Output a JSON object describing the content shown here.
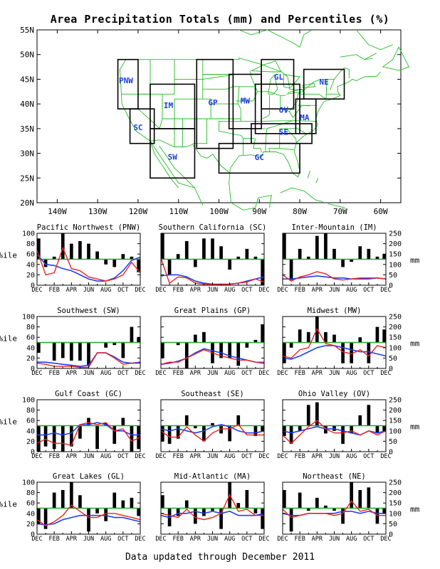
{
  "title": "Area Precipitation Totals (mm) and Percentiles (%)",
  "footer": "Data updated through December 2011",
  "colors": {
    "map_lines": "#22bb22",
    "region_box": "#000000",
    "region_label": "#1a3fe0",
    "precip_line": "#ee2222",
    "normal_line": "#2040ee",
    "median_line": "#22aa22",
    "bar": "#000000"
  },
  "map": {
    "lat_labels": [
      "55N",
      "50N",
      "45N",
      "40N",
      "35N",
      "30N",
      "25N",
      "20N"
    ],
    "lon_labels": [
      "140W",
      "130W",
      "120W",
      "110W",
      "100W",
      "90W",
      "80W",
      "70W",
      "60W"
    ],
    "regions": [
      "PNW",
      "SC",
      "IM",
      "SW",
      "GP",
      "MW",
      "GL",
      "OV",
      "SE",
      "GC",
      "MA",
      "NE"
    ]
  },
  "axis": {
    "pct_label": "%ile",
    "mm_label": "mm",
    "pct_ticks": [
      "0",
      "20",
      "40",
      "60",
      "80",
      "100"
    ],
    "mm_ticks": [
      "0",
      "50",
      "100",
      "150",
      "200",
      "250"
    ],
    "month_ticks": [
      "DEC",
      "FEB",
      "APR",
      "JUN",
      "AUG",
      "OCT",
      "DEC"
    ]
  },
  "chart_data": [
    {
      "type": "bar",
      "title": "Pacific Northwest (PNW)",
      "y_left": "%ile",
      "y_right": "mm",
      "ylim": [
        0,
        100
      ],
      "y2lim": [
        0,
        250
      ],
      "percentile": [
        90,
        35,
        55,
        100,
        80,
        85,
        80,
        65,
        40,
        35,
        60,
        55,
        25
      ],
      "precip_mm": [
        170,
        50,
        60,
        180,
        80,
        70,
        40,
        30,
        20,
        30,
        50,
        110,
        60
      ],
      "normal_mm": [
        150,
        100,
        95,
        80,
        70,
        50,
        30,
        20,
        20,
        35,
        70,
        120,
        135
      ]
    },
    {
      "type": "bar",
      "title": "Southern California (SC)",
      "y_left": "%ile",
      "y_right": "mm",
      "ylim": [
        0,
        100
      ],
      "y2lim": [
        0,
        250
      ],
      "percentile": [
        100,
        20,
        60,
        85,
        35,
        90,
        90,
        75,
        30,
        55,
        70,
        55,
        0
      ],
      "precip_mm": [
        130,
        10,
        40,
        35,
        10,
        5,
        4,
        3,
        5,
        10,
        15,
        30,
        15
      ],
      "normal_mm": [
        45,
        50,
        50,
        40,
        20,
        10,
        5,
        5,
        5,
        10,
        20,
        30,
        40
      ]
    },
    {
      "type": "bar",
      "title": "Inter-Mountain (IM)",
      "y_left": "%ile",
      "y_right": "mm",
      "ylim": [
        0,
        100
      ],
      "y2lim": [
        0,
        250
      ],
      "percentile": [
        100,
        10,
        70,
        55,
        95,
        100,
        70,
        35,
        45,
        75,
        70,
        55,
        60
      ],
      "precip_mm": [
        50,
        20,
        40,
        50,
        65,
        55,
        30,
        25,
        30,
        35,
        35,
        35,
        30
      ],
      "normal_mm": [
        30,
        30,
        35,
        40,
        45,
        40,
        35,
        35,
        30,
        30,
        30,
        35,
        30
      ]
    },
    {
      "type": "bar",
      "title": "Southwest (SW)",
      "y_left": "%ile",
      "y_right": "mm",
      "ylim": [
        0,
        100
      ],
      "y2lim": [
        0,
        250
      ],
      "percentile": [
        30,
        50,
        15,
        20,
        15,
        15,
        5,
        50,
        40,
        45,
        20,
        80,
        60
      ],
      "precip_mm": [
        25,
        20,
        10,
        10,
        10,
        5,
        5,
        75,
        75,
        50,
        20,
        25,
        25
      ],
      "normal_mm": [
        30,
        30,
        25,
        20,
        15,
        10,
        15,
        75,
        75,
        55,
        30,
        25,
        30
      ]
    },
    {
      "type": "bar",
      "title": "Great Plains (GP)",
      "y_left": "%ile",
      "y_right": "mm",
      "ylim": [
        0,
        100
      ],
      "y2lim": [
        0,
        250
      ],
      "percentile": [
        20,
        50,
        45,
        0,
        65,
        70,
        10,
        20,
        20,
        5,
        40,
        55,
        85
      ],
      "precip_mm": [
        20,
        30,
        30,
        50,
        70,
        90,
        75,
        60,
        50,
        40,
        40,
        30,
        30
      ],
      "normal_mm": [
        20,
        25,
        35,
        50,
        75,
        95,
        85,
        75,
        60,
        50,
        40,
        30,
        25
      ]
    },
    {
      "type": "bar",
      "title": "Midwest (MW)",
      "y_left": "%ile",
      "y_right": "mm",
      "ylim": [
        0,
        100
      ],
      "y2lim": [
        0,
        250
      ],
      "percentile": [
        10,
        40,
        75,
        70,
        100,
        70,
        65,
        10,
        10,
        60,
        10,
        80,
        75
      ],
      "precip_mm": [
        60,
        50,
        90,
        100,
        190,
        120,
        110,
        80,
        70,
        90,
        60,
        110,
        100
      ],
      "normal_mm": [
        50,
        45,
        60,
        80,
        100,
        110,
        110,
        100,
        90,
        80,
        80,
        70,
        60
      ]
    },
    {
      "type": "bar",
      "title": "Gulf Coast (GC)",
      "y_left": "%ile",
      "y_right": "mm",
      "ylim": [
        0,
        100
      ],
      "y2lim": [
        0,
        250
      ],
      "percentile": [
        0,
        10,
        5,
        0,
        10,
        25,
        65,
        5,
        55,
        15,
        65,
        0,
        5
      ],
      "precip_mm": [
        40,
        60,
        40,
        40,
        30,
        130,
        140,
        130,
        140,
        100,
        110,
        50,
        70
      ],
      "normal_mm": [
        80,
        80,
        90,
        80,
        90,
        130,
        130,
        140,
        130,
        100,
        100,
        80,
        80
      ]
    },
    {
      "type": "bar",
      "title": "Southeast (SE)",
      "y_left": "%ile",
      "y_right": "mm",
      "ylim": [
        0,
        100
      ],
      "y2lim": [
        0,
        250
      ],
      "percentile": [
        20,
        15,
        25,
        70,
        45,
        20,
        55,
        35,
        20,
        70,
        50,
        30,
        40
      ],
      "precip_mm": [
        100,
        70,
        70,
        120,
        80,
        50,
        90,
        110,
        110,
        130,
        80,
        80,
        80
      ],
      "normal_mm": [
        110,
        100,
        110,
        100,
        90,
        100,
        120,
        130,
        120,
        100,
        90,
        90,
        100
      ]
    },
    {
      "type": "bar",
      "title": "Ohio Valley (OV)",
      "y_left": "%ile",
      "y_right": "mm",
      "ylim": [
        0,
        100
      ],
      "y2lim": [
        0,
        250
      ],
      "percentile": [
        30,
        15,
        40,
        90,
        95,
        35,
        40,
        15,
        35,
        70,
        90,
        35,
        40
      ],
      "precip_mm": [
        80,
        40,
        80,
        120,
        150,
        110,
        90,
        90,
        100,
        80,
        100,
        80,
        100
      ],
      "normal_mm": [
        100,
        90,
        100,
        110,
        120,
        110,
        110,
        100,
        90,
        80,
        100,
        90,
        100
      ]
    },
    {
      "type": "bar",
      "title": "Great Lakes (GL)",
      "y_left": "%ile",
      "y_right": "mm",
      "ylim": [
        0,
        100
      ],
      "y2lim": [
        0,
        250
      ],
      "percentile": [
        20,
        10,
        80,
        85,
        100,
        75,
        5,
        40,
        25,
        80,
        65,
        70,
        35
      ],
      "precip_mm": [
        70,
        40,
        60,
        90,
        140,
        110,
        80,
        80,
        100,
        100,
        90,
        80,
        70
      ],
      "normal_mm": [
        50,
        45,
        50,
        70,
        80,
        90,
        90,
        90,
        90,
        80,
        80,
        70,
        60
      ]
    },
    {
      "type": "bar",
      "title": "Mid-Atlantic (MA)",
      "y_left": "%ile",
      "y_right": "mm",
      "ylim": [
        0,
        100
      ],
      "y2lim": [
        0,
        250
      ],
      "percentile": [
        75,
        15,
        35,
        65,
        20,
        35,
        45,
        10,
        100,
        60,
        85,
        40,
        10
      ],
      "precip_mm": [
        100,
        90,
        80,
        120,
        80,
        70,
        80,
        100,
        190,
        110,
        120,
        90,
        90
      ],
      "normal_mm": [
        90,
        80,
        100,
        100,
        110,
        100,
        110,
        100,
        110,
        90,
        90,
        90,
        100
      ]
    },
    {
      "type": "bar",
      "title": "Northeast (NE)",
      "y_left": "%ile",
      "y_right": "mm",
      "ylim": [
        0,
        100
      ],
      "y2lim": [
        0,
        250
      ],
      "percentile": [
        85,
        5,
        80,
        45,
        70,
        55,
        45,
        20,
        100,
        85,
        90,
        20,
        40
      ],
      "precip_mm": [
        120,
        80,
        90,
        100,
        100,
        100,
        90,
        100,
        160,
        110,
        120,
        90,
        90
      ],
      "normal_mm": [
        100,
        90,
        90,
        100,
        100,
        100,
        100,
        110,
        110,
        100,
        110,
        100,
        100
      ]
    }
  ]
}
